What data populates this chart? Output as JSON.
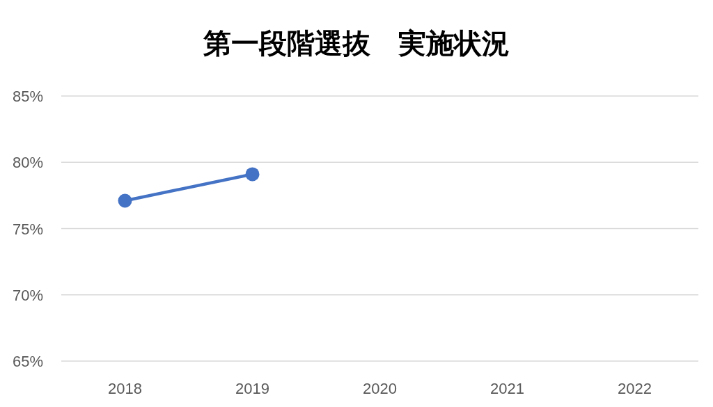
{
  "chart_data": {
    "type": "line",
    "title": "第一段階選抜　実施状況",
    "categories": [
      "2018",
      "2019",
      "2020",
      "2021",
      "2022"
    ],
    "series": [
      {
        "color": "#4472c4",
        "values": [
          77.1,
          79.1,
          null,
          null,
          null
        ]
      }
    ],
    "ylim": [
      65,
      85
    ],
    "yticks": [
      {
        "value": 65,
        "label": "65%"
      },
      {
        "value": 70,
        "label": "70%"
      },
      {
        "value": 75,
        "label": "75%"
      },
      {
        "value": 80,
        "label": "80%"
      },
      {
        "value": 85,
        "label": "85%"
      }
    ],
    "grid": "y",
    "marker": "circle",
    "line_style": "solid"
  }
}
